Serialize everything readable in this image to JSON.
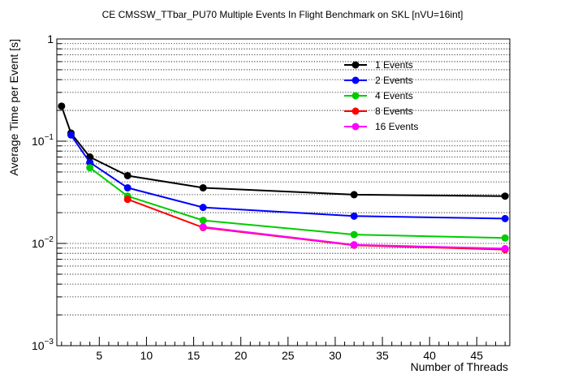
{
  "chart_data": {
    "type": "line",
    "title": "CE CMSSW_TTbar_PU70 Multiple Events In Flight Benchmark on SKL [nVU=16int]",
    "xlabel": "Number of Threads",
    "ylabel": "Average Time per Event [s]",
    "xlim": [
      0.5,
      48.5
    ],
    "ylim": [
      0.001,
      1
    ],
    "yscale": "log",
    "grid": "horizontal dotted",
    "legend_position": "top-right",
    "x_ticks": [
      5,
      10,
      15,
      20,
      25,
      30,
      35,
      40,
      45
    ],
    "x_tick_labels": [
      "5",
      "10",
      "15",
      "20",
      "25",
      "30",
      "35",
      "40",
      "45"
    ],
    "y_ticks": [
      0.001,
      0.01,
      0.1,
      1
    ],
    "y_tick_labels": [
      {
        "base": "10",
        "exp": "−3"
      },
      {
        "base": "10",
        "exp": "−2"
      },
      {
        "base": "10",
        "exp": "−1"
      },
      {
        "base": "1",
        "exp": ""
      }
    ],
    "series": [
      {
        "name": "1 Events",
        "color": "#000000",
        "x": [
          1,
          2,
          4,
          8,
          16,
          32,
          48
        ],
        "values": [
          0.22,
          0.12,
          0.07,
          0.046,
          0.035,
          0.03,
          0.029
        ]
      },
      {
        "name": "2 Events",
        "color": "#0000ff",
        "x": [
          2,
          4,
          8,
          16,
          32,
          48
        ],
        "values": [
          0.115,
          0.062,
          0.035,
          0.0225,
          0.0185,
          0.0175
        ]
      },
      {
        "name": "4 Events",
        "color": "#00cc00",
        "x": [
          4,
          8,
          16,
          32,
          48
        ],
        "values": [
          0.055,
          0.029,
          0.0168,
          0.0122,
          0.0113
        ]
      },
      {
        "name": "8 Events",
        "color": "#ff0000",
        "x": [
          8,
          16,
          32,
          48
        ],
        "values": [
          0.027,
          0.0143,
          0.0096,
          0.0087
        ]
      },
      {
        "name": "16 Events",
        "color": "#ff00ff",
        "x": [
          16,
          32,
          48
        ],
        "values": [
          0.0145,
          0.0097,
          0.0089
        ]
      }
    ]
  }
}
